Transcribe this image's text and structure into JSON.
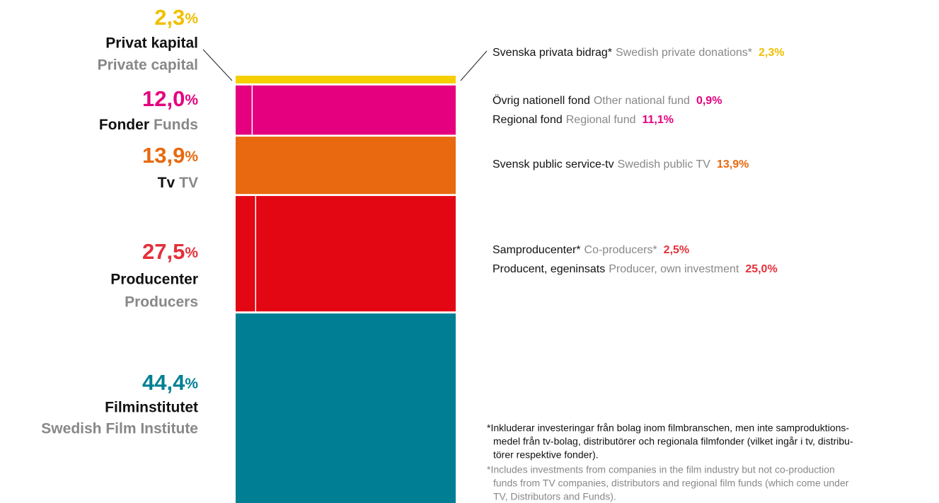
{
  "chart_data": {
    "type": "stacked-bar",
    "unit": "%",
    "groups": [
      {
        "name": "Privat kapital",
        "name_en": "Private capital",
        "value": 2.3,
        "value_label": "2,3",
        "color": "#f5cf00",
        "text_color": "#f0c000",
        "segments": [
          {
            "name": "Svenska privata bidrag*",
            "name_en": "Swedish private donations*",
            "value": 2.3,
            "value_label": "2,3%"
          }
        ]
      },
      {
        "name": "Fonder",
        "name_en": "Funds",
        "value": 12.0,
        "value_label": "12,0",
        "color": "#e4007f",
        "text_color": "#e4007f",
        "segments": [
          {
            "name": "Övrig nationell fond",
            "name_en": "Other national fund",
            "value": 0.9,
            "value_label": "0,9%"
          },
          {
            "name": "Regional fond",
            "name_en": "Regional fund",
            "value": 11.1,
            "value_label": "11,1%"
          }
        ]
      },
      {
        "name": "Tv",
        "name_en": "TV",
        "value": 13.9,
        "value_label": "13,9",
        "color": "#e8690f",
        "text_color": "#e8690f",
        "segments": [
          {
            "name": "Svensk public service-tv",
            "name_en": "Swedish public TV",
            "value": 13.9,
            "value_label": "13,9%"
          }
        ]
      },
      {
        "name": "Producenter",
        "name_en": "Producers",
        "value": 27.5,
        "value_label": "27,5",
        "color": "#e30613",
        "text_color": "#e4303a",
        "segments": [
          {
            "name": "Samproducenter*",
            "name_en": "Co-producers*",
            "value": 2.5,
            "value_label": "2,5%"
          },
          {
            "name": "Producent, egeninsats",
            "name_en": "Producer, own investment",
            "value": 25.0,
            "value_label": "25,0%"
          }
        ]
      },
      {
        "name": "Filminstitutet",
        "name_en": "Swedish Film Institute",
        "value": 44.4,
        "value_label": "44,4",
        "color": "#007f94",
        "text_color": "#007f94",
        "segments": []
      }
    ],
    "footnote": [
      "*Inkluderar investeringar från bolag inom filmbranschen, men inte samproduktions-",
      "medel från tv-bolag, distributörer och regionala filmfonder (vilket ingår i tv, distribu-",
      "törer respektive fonder)."
    ],
    "footnote_en": [
      "*Includes investments from companies in the film industry but not co-production",
      "funds from TV companies, distributors and regional film funds (which come under",
      "TV, Distributors and Funds)."
    ]
  }
}
